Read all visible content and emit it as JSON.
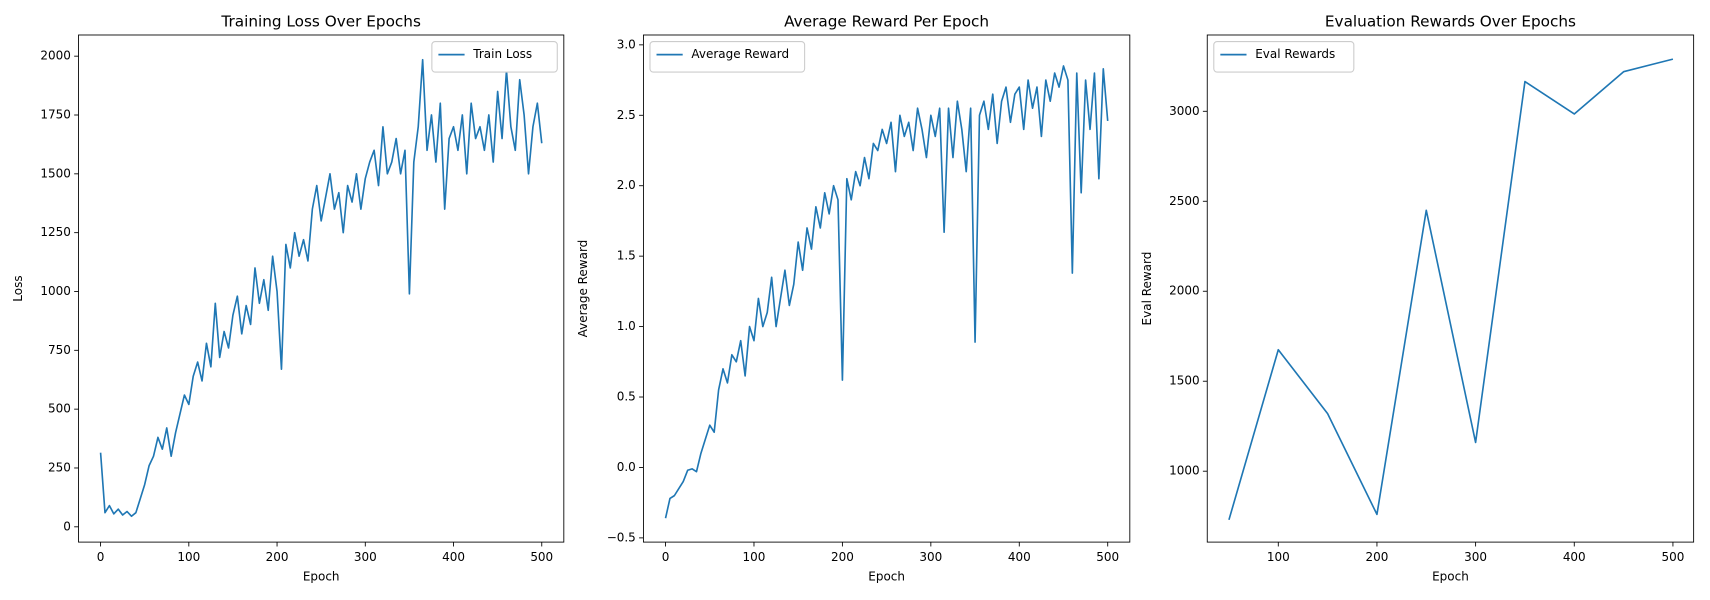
{
  "chart_data": [
    {
      "type": "line",
      "title": "Training Loss Over Epochs",
      "xlabel": "Epoch",
      "ylabel": "Loss",
      "x": [
        0,
        5,
        10,
        15,
        20,
        25,
        30,
        35,
        40,
        45,
        50,
        55,
        60,
        65,
        70,
        75,
        80,
        85,
        90,
        95,
        100,
        105,
        110,
        115,
        120,
        125,
        130,
        135,
        140,
        145,
        150,
        155,
        160,
        165,
        170,
        175,
        180,
        185,
        190,
        195,
        200,
        205,
        210,
        215,
        220,
        225,
        230,
        235,
        240,
        245,
        250,
        255,
        260,
        265,
        270,
        275,
        280,
        285,
        290,
        295,
        300,
        305,
        310,
        315,
        320,
        325,
        330,
        335,
        340,
        345,
        350,
        355,
        360,
        365,
        370,
        375,
        380,
        385,
        390,
        395,
        400,
        405,
        410,
        415,
        420,
        425,
        430,
        435,
        440,
        445,
        450,
        455,
        460,
        465,
        470,
        475,
        480,
        485,
        490,
        495,
        500
      ],
      "series": [
        {
          "name": "Train Loss",
          "color": "#1f77b4",
          "values": [
            315,
            60,
            90,
            55,
            75,
            50,
            65,
            45,
            60,
            120,
            180,
            260,
            300,
            380,
            330,
            420,
            300,
            400,
            480,
            560,
            520,
            640,
            700,
            620,
            780,
            680,
            950,
            720,
            830,
            760,
            900,
            980,
            820,
            940,
            860,
            1100,
            950,
            1050,
            920,
            1150,
            1000,
            670,
            1200,
            1100,
            1250,
            1150,
            1220,
            1130,
            1350,
            1450,
            1300,
            1400,
            1500,
            1350,
            1420,
            1250,
            1450,
            1380,
            1500,
            1350,
            1480,
            1550,
            1600,
            1450,
            1700,
            1500,
            1550,
            1650,
            1500,
            1600,
            990,
            1550,
            1700,
            1985,
            1600,
            1750,
            1550,
            1800,
            1350,
            1650,
            1700,
            1600,
            1750,
            1500,
            1800,
            1650,
            1700,
            1600,
            1750,
            1550,
            1850,
            1650,
            1940,
            1700,
            1600,
            1900,
            1750,
            1500,
            1700,
            1800,
            1630
          ]
        }
      ],
      "xlim": [
        -25,
        525
      ],
      "ylim": [
        -65,
        2090
      ],
      "xticks": [
        0,
        100,
        200,
        300,
        400,
        500
      ],
      "yticks": [
        0,
        250,
        500,
        750,
        1000,
        1250,
        1500,
        1750,
        2000
      ],
      "legend": "upper right"
    },
    {
      "type": "line",
      "title": "Average Reward Per Epoch",
      "xlabel": "Epoch",
      "ylabel": "Average Reward",
      "x": [
        0,
        5,
        10,
        15,
        20,
        25,
        30,
        35,
        40,
        45,
        50,
        55,
        60,
        65,
        70,
        75,
        80,
        85,
        90,
        95,
        100,
        105,
        110,
        115,
        120,
        125,
        130,
        135,
        140,
        145,
        150,
        155,
        160,
        165,
        170,
        175,
        180,
        185,
        190,
        195,
        200,
        205,
        210,
        215,
        220,
        225,
        230,
        235,
        240,
        245,
        250,
        255,
        260,
        265,
        270,
        275,
        280,
        285,
        290,
        295,
        300,
        305,
        310,
        315,
        320,
        325,
        330,
        335,
        340,
        345,
        350,
        355,
        360,
        365,
        370,
        375,
        380,
        385,
        390,
        395,
        400,
        405,
        410,
        415,
        420,
        425,
        430,
        435,
        440,
        445,
        450,
        455,
        460,
        465,
        470,
        475,
        480,
        485,
        490,
        495,
        500
      ],
      "series": [
        {
          "name": "Average Reward",
          "color": "#1f77b4",
          "values": [
            -0.36,
            -0.22,
            -0.2,
            -0.15,
            -0.1,
            -0.02,
            -0.01,
            -0.03,
            0.1,
            0.2,
            0.3,
            0.25,
            0.55,
            0.7,
            0.6,
            0.8,
            0.75,
            0.9,
            0.65,
            1.0,
            0.9,
            1.2,
            1.0,
            1.1,
            1.35,
            1.0,
            1.2,
            1.4,
            1.15,
            1.3,
            1.6,
            1.4,
            1.7,
            1.55,
            1.85,
            1.7,
            1.95,
            1.8,
            2.0,
            1.9,
            0.62,
            2.05,
            1.9,
            2.1,
            2.0,
            2.2,
            2.05,
            2.3,
            2.25,
            2.4,
            2.3,
            2.45,
            2.1,
            2.5,
            2.35,
            2.45,
            2.25,
            2.55,
            2.4,
            2.2,
            2.5,
            2.35,
            2.55,
            1.67,
            2.55,
            2.2,
            2.6,
            2.4,
            2.1,
            2.55,
            0.89,
            2.5,
            2.6,
            2.4,
            2.65,
            2.3,
            2.6,
            2.7,
            2.45,
            2.65,
            2.7,
            2.4,
            2.75,
            2.55,
            2.7,
            2.35,
            2.75,
            2.6,
            2.8,
            2.7,
            2.85,
            2.75,
            1.38,
            2.8,
            1.95,
            2.75,
            2.4,
            2.8,
            2.05,
            2.83,
            2.46
          ]
        }
      ],
      "xlim": [
        -25,
        525
      ],
      "ylim": [
        -0.53,
        3.07
      ],
      "xticks": [
        0,
        100,
        200,
        300,
        400,
        500
      ],
      "yticks": [
        {
          "value": -0.5,
          "label": "−0.5"
        },
        {
          "value": 0,
          "label": "0.0"
        },
        0.5,
        {
          "value": 1,
          "label": "1.0"
        },
        1.5,
        {
          "value": 2,
          "label": "2.0"
        },
        2.5,
        {
          "value": 3,
          "label": "3.0"
        }
      ],
      "legend": "upper left"
    },
    {
      "type": "line",
      "title": "Evaluation Rewards Over Epochs",
      "xlabel": "Epoch",
      "ylabel": "Eval Reward",
      "x": [
        50,
        100,
        150,
        200,
        250,
        300,
        350,
        400,
        450,
        500
      ],
      "series": [
        {
          "name": "Eval Rewards",
          "color": "#1f77b4",
          "values": [
            730,
            1675,
            1320,
            760,
            2450,
            1160,
            3165,
            2985,
            3220,
            3290
          ]
        }
      ],
      "xlim": [
        28,
        521
      ],
      "ylim": [
        606,
        3424
      ],
      "xticks": [
        100,
        200,
        300,
        400,
        500
      ],
      "yticks": [
        1000,
        1500,
        2000,
        2500,
        3000
      ],
      "legend": "upper left"
    }
  ]
}
